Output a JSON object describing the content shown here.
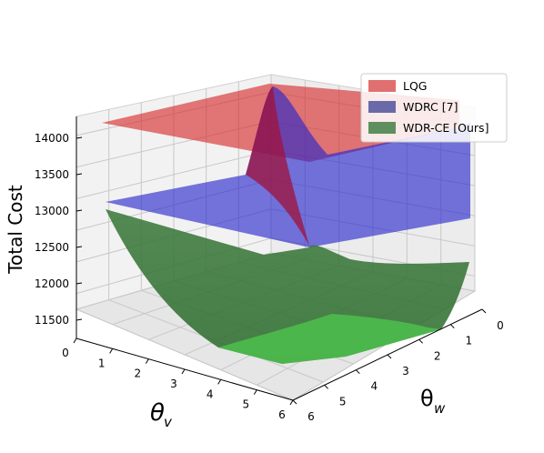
{
  "chart_data": {
    "type": "surface3d",
    "zlabel": "Total Cost",
    "xlabel": "θ_v",
    "ylabel": "θ_w",
    "x_ticks": [
      "0",
      "1",
      "2",
      "3",
      "4",
      "5",
      "6"
    ],
    "y_ticks": [
      "0",
      "1",
      "2",
      "3",
      "4",
      "5",
      "6"
    ],
    "z_ticks": [
      "11500",
      "12000",
      "12500",
      "13000",
      "13500",
      "14000"
    ],
    "x_range": [
      0,
      6
    ],
    "y_range": [
      0,
      6
    ],
    "z_range": [
      11250,
      14300
    ],
    "grid": true,
    "legend_position": "top-right",
    "series": [
      {
        "name": "LQG",
        "color": "#d62728",
        "surface": "constant",
        "value": 14250
      },
      {
        "name": "WDRC [7]",
        "color": "#1f1fcc",
        "surface": "varying",
        "value_at_theta_w_small": 13850,
        "value_elsewhere": 13150
      },
      {
        "name": "WDR-CE [Ours]",
        "color": "#2e8b2e",
        "surface": "varying",
        "value_at_origin": 13100,
        "minimum": 11400,
        "value_at_theta_v_6_theta_w_0": 12150
      }
    ]
  }
}
